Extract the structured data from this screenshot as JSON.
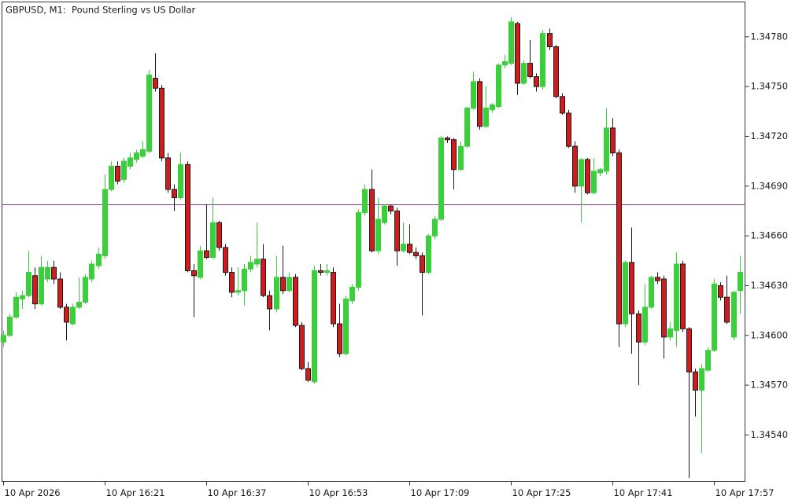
{
  "chart_data": {
    "type": "candlestick",
    "title": "GBPUSD, M1:  Pound Sterling vs US Dollar",
    "categories": [
      "10 Apr 2026",
      null,
      null,
      null,
      null,
      null,
      null,
      null,
      null,
      null,
      null,
      null,
      null,
      null,
      null,
      null,
      "10 Apr 16:21",
      null,
      null,
      null,
      null,
      null,
      null,
      null,
      null,
      null,
      null,
      null,
      null,
      null,
      null,
      null,
      "10 Apr 16:37",
      null,
      null,
      null,
      null,
      null,
      null,
      null,
      null,
      null,
      null,
      null,
      null,
      null,
      null,
      null,
      "10 Apr 16:53",
      null,
      null,
      null,
      null,
      null,
      null,
      null,
      null,
      null,
      null,
      null,
      null,
      null,
      null,
      null,
      "10 Apr 17:09",
      null,
      null,
      null,
      null,
      null,
      null,
      null,
      null,
      null,
      null,
      null,
      null,
      null,
      null,
      null,
      "10 Apr 17:25",
      null,
      null,
      null,
      null,
      null,
      null,
      null,
      null,
      null,
      null,
      null,
      null,
      null,
      null,
      null,
      "10 Apr 17:41",
      null,
      null,
      null,
      null,
      null,
      null,
      null,
      null,
      null,
      null,
      null,
      null,
      null,
      null,
      null,
      "10 Apr 17:57",
      null,
      null,
      null,
      null
    ],
    "open": [
      1.34596,
      1.346,
      1.34611,
      1.34622,
      1.34624,
      1.34636,
      1.34619,
      1.34634,
      1.34641,
      1.34634,
      1.34617,
      1.34607,
      1.34617,
      1.3462,
      1.34634,
      1.34642,
      1.34648,
      1.34688,
      1.34702,
      1.34694,
      1.34702,
      1.34706,
      1.34708,
      1.34711,
      1.34755,
      1.34749,
      1.34707,
      1.34688,
      1.34683,
      1.34703,
      1.34639,
      1.34635,
      1.34651,
      1.34647,
      1.34668,
      1.34653,
      1.34638,
      1.34626,
      1.34627,
      1.3464,
      1.34643,
      1.34646,
      1.34624,
      1.34616,
      1.34635,
      1.34627,
      1.34635,
      1.34606,
      1.3458,
      1.34572,
      1.34639,
      1.34638,
      1.34638,
      1.34607,
      1.34589,
      1.34621,
      1.34629,
      1.34674,
      1.34688,
      1.34651,
      1.34668,
      1.34678,
      1.34675,
      1.34651,
      1.34655,
      1.3465,
      1.34648,
      1.34638,
      1.3466,
      1.3467,
      1.34719,
      1.34718,
      1.347,
      1.34714,
      1.34737,
      1.34753,
      1.34726,
      1.34736,
      1.34738,
      1.34763,
      1.34764,
      1.34788,
      1.34752,
      1.34764,
      1.34756,
      1.3475,
      1.34782,
      1.34774,
      1.34744,
      1.34734,
      1.34714,
      1.3469,
      1.34706,
      1.34686,
      1.34698,
      1.34699,
      1.34725,
      1.3471,
      1.34607,
      1.34644,
      1.34613,
      1.34596,
      1.34617,
      1.34635,
      1.34634,
      1.34599,
      1.34603,
      1.34643,
      1.34604,
      1.34578,
      1.34567,
      1.34579,
      1.34591,
      1.3463,
      1.34623,
      1.34599,
      1.34627
    ],
    "high": [
      1.34603,
      1.34613,
      1.34626,
      1.34627,
      1.34651,
      1.34641,
      1.34648,
      1.34645,
      1.34645,
      1.34638,
      1.34619,
      1.34619,
      1.34635,
      1.34637,
      1.34645,
      1.34653,
      1.34697,
      1.34705,
      1.34705,
      1.34707,
      1.3471,
      1.34712,
      1.34717,
      1.3476,
      1.3477,
      1.34751,
      1.3471,
      1.34691,
      1.3471,
      1.34705,
      1.34643,
      1.34654,
      1.34679,
      1.34683,
      1.34669,
      1.34655,
      1.34641,
      1.34641,
      1.34643,
      1.34648,
      1.34668,
      1.34655,
      1.34627,
      1.34648,
      1.34654,
      1.34638,
      1.34637,
      1.34608,
      1.34584,
      1.34642,
      1.34643,
      1.34643,
      1.34641,
      1.34619,
      1.34624,
      1.34631,
      1.34676,
      1.34691,
      1.347,
      1.34683,
      1.34679,
      1.34679,
      1.34677,
      1.34668,
      1.34667,
      1.34653,
      1.3465,
      1.34661,
      1.34672,
      1.3472,
      1.3472,
      1.34719,
      1.34717,
      1.34738,
      1.34759,
      1.34755,
      1.3475,
      1.3474,
      1.34764,
      1.34769,
      1.34792,
      1.34789,
      1.34766,
      1.34778,
      1.34758,
      1.34784,
      1.34785,
      1.34775,
      1.34746,
      1.34736,
      1.34717,
      1.34707,
      1.34707,
      1.34707,
      1.34701,
      1.34737,
      1.34731,
      1.34712,
      1.34645,
      1.34665,
      1.34615,
      1.34631,
      1.34636,
      1.34638,
      1.34636,
      1.34608,
      1.3465,
      1.34645,
      1.34605,
      1.3458,
      1.34583,
      1.34593,
      1.34634,
      1.34632,
      1.34636,
      1.34627,
      1.34648
    ],
    "low": [
      1.34593,
      1.34599,
      1.3461,
      1.34616,
      1.34623,
      1.34616,
      1.34618,
      1.34632,
      1.34631,
      1.34616,
      1.34597,
      1.34606,
      1.34616,
      1.34619,
      1.34632,
      1.3464,
      1.34646,
      1.34687,
      1.34691,
      1.34692,
      1.347,
      1.34704,
      1.34707,
      1.3471,
      1.34747,
      1.34705,
      1.34686,
      1.34675,
      1.34682,
      1.34638,
      1.34611,
      1.34634,
      1.34646,
      1.34646,
      1.34651,
      1.34636,
      1.34623,
      1.34624,
      1.34618,
      1.34638,
      1.34641,
      1.34623,
      1.34603,
      1.34614,
      1.34625,
      1.34626,
      1.34605,
      1.34579,
      1.34572,
      1.34571,
      1.34636,
      1.34636,
      1.34605,
      1.34587,
      1.34588,
      1.34619,
      1.34627,
      1.34672,
      1.3465,
      1.34649,
      1.34667,
      1.34673,
      1.34642,
      1.3465,
      1.34649,
      1.34646,
      1.34612,
      1.34637,
      1.34658,
      1.34669,
      1.34716,
      1.34688,
      1.34699,
      1.34713,
      1.34736,
      1.34724,
      1.34725,
      1.34734,
      1.34737,
      1.34761,
      1.34763,
      1.34745,
      1.34751,
      1.34755,
      1.34747,
      1.34748,
      1.34772,
      1.34743,
      1.34733,
      1.34713,
      1.34686,
      1.34668,
      1.34685,
      1.34685,
      1.34696,
      1.34697,
      1.34708,
      1.34593,
      1.34605,
      1.34589,
      1.3457,
      1.34594,
      1.34616,
      1.34631,
      1.34586,
      1.34597,
      1.34593,
      1.34602,
      1.34514,
      1.34551,
      1.34529,
      1.34578,
      1.3459,
      1.34621,
      1.34607,
      1.34597,
      1.34613
    ],
    "close": [
      1.346,
      1.34611,
      1.34623,
      1.34624,
      1.34638,
      1.34619,
      1.34641,
      1.34641,
      1.34634,
      1.34617,
      1.34608,
      1.34617,
      1.3462,
      1.34635,
      1.34643,
      1.34649,
      1.34688,
      1.34702,
      1.34693,
      1.34705,
      1.34707,
      1.3471,
      1.34712,
      1.34757,
      1.34749,
      1.34707,
      1.34688,
      1.34683,
      1.34703,
      1.34639,
      1.34636,
      1.34651,
      1.34647,
      1.34668,
      1.34653,
      1.34638,
      1.34626,
      1.34627,
      1.3464,
      1.34644,
      1.34646,
      1.34624,
      1.34616,
      1.34635,
      1.34627,
      1.34635,
      1.34606,
      1.3458,
      1.34573,
      1.34639,
      1.34638,
      1.34639,
      1.34607,
      1.34589,
      1.34622,
      1.34629,
      1.34674,
      1.34688,
      1.34651,
      1.3467,
      1.34678,
      1.34675,
      1.34651,
      1.34655,
      1.3465,
      1.34648,
      1.34638,
      1.3466,
      1.3467,
      1.34719,
      1.34718,
      1.347,
      1.34714,
      1.34737,
      1.34753,
      1.34726,
      1.34737,
      1.34739,
      1.34763,
      1.34765,
      1.34789,
      1.34752,
      1.34764,
      1.34756,
      1.3475,
      1.34782,
      1.34774,
      1.34744,
      1.34734,
      1.34714,
      1.3469,
      1.34706,
      1.34686,
      1.34699,
      1.347,
      1.34725,
      1.3471,
      1.34607,
      1.34644,
      1.34613,
      1.34596,
      1.34617,
      1.34635,
      1.34633,
      1.34599,
      1.34604,
      1.34643,
      1.34604,
      1.34578,
      1.34567,
      1.3458,
      1.34591,
      1.34631,
      1.34623,
      1.34608,
      1.34626,
      1.34638
    ],
    "up_color": "#3ccf3c",
    "down_color": "#d01c1c",
    "down_outline": "#1a1a1a",
    "price_line": 1.34679,
    "price_line_color": "#8b3a8b",
    "ylim": [
      1.34512,
      1.34801
    ],
    "yticks": [
      {
        "value": 1.3454,
        "label": "1.34540"
      },
      {
        "value": 1.3457,
        "label": "1.34570"
      },
      {
        "value": 1.346,
        "label": "1.34600"
      },
      {
        "value": 1.3463,
        "label": "1.34630"
      },
      {
        "value": 1.3466,
        "label": "1.34660"
      },
      {
        "value": 1.3469,
        "label": "1.34690"
      },
      {
        "value": 1.3472,
        "label": "1.34720"
      },
      {
        "value": 1.3475,
        "label": "1.34750"
      },
      {
        "value": 1.3478,
        "label": "1.34780"
      }
    ],
    "y_axis_side": "right",
    "grid": false
  }
}
